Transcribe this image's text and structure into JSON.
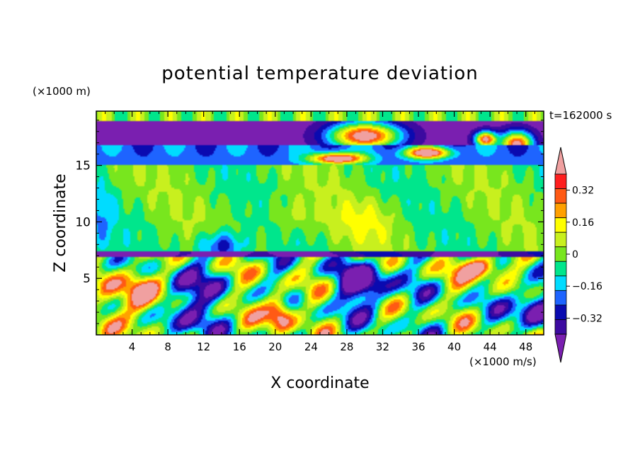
{
  "chart_data": {
    "type": "heatmap",
    "title": "potential temperature deviation",
    "xlabel": "X coordinate",
    "ylabel": "Z coordinate",
    "x_unit": "(×1000 m/s)",
    "y_unit": "(×1000 m)",
    "time_label": "t=162000 s",
    "xlim": [
      0,
      50
    ],
    "ylim": [
      0,
      19.8
    ],
    "xticks": [
      "4",
      "8",
      "12",
      "16",
      "20",
      "24",
      "28",
      "32",
      "36",
      "40",
      "44",
      "48"
    ],
    "xtick_values": [
      4,
      8,
      12,
      16,
      20,
      24,
      28,
      32,
      36,
      40,
      44,
      48
    ],
    "yticks": [
      "5",
      "10",
      "15"
    ],
    "ytick_values": [
      5,
      10,
      15
    ],
    "colorbar": {
      "levels": [
        -0.4,
        -0.32,
        -0.24,
        -0.16,
        -0.08,
        0,
        0.08,
        0.16,
        0.24,
        0.32,
        0.4
      ],
      "labels": [
        "0.32",
        "0.16",
        "0",
        "−0.16",
        "−0.32"
      ],
      "label_values": [
        0.32,
        0.16,
        0,
        -0.16,
        -0.32
      ],
      "colors": [
        "#7a1fb0",
        "#3c0aa0",
        "#0a0ab0",
        "#1e64ff",
        "#00dcff",
        "#00e68c",
        "#78e61e",
        "#c8f01e",
        "#ffff00",
        "#ffa000",
        "#ff5a14",
        "#ff1e1e",
        "#f0a0a0"
      ]
    },
    "grid": false
  }
}
